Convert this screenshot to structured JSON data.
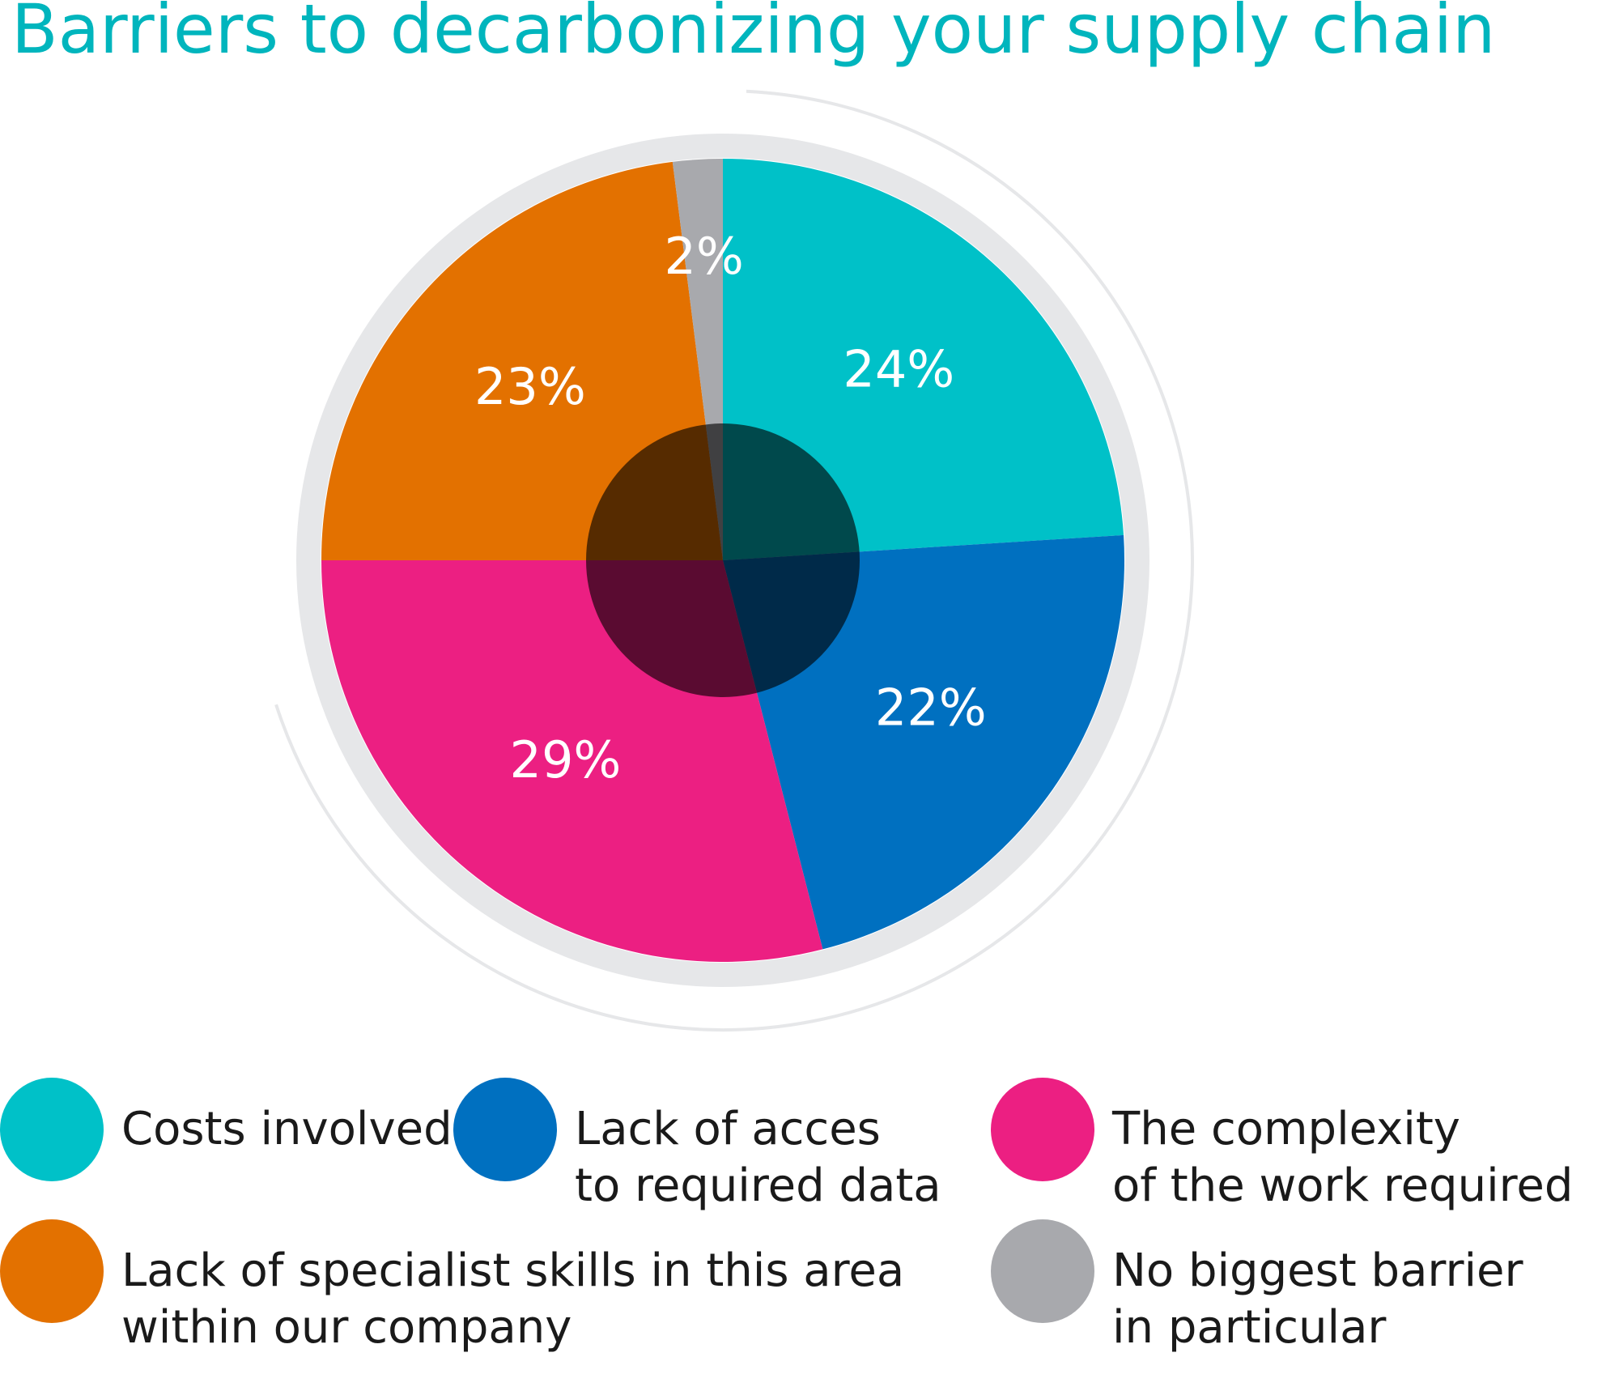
{
  "chart_data": {
    "type": "pie",
    "title": "Barriers to decarbonizing your supply chain",
    "categories": [
      "Costs involved",
      "Lack of acces\nto required data",
      "The complexity\nof the work required",
      "Lack of specialist skills in this area\nwithin our company",
      "No biggest barrier\nin particular"
    ],
    "values": [
      24,
      22,
      29,
      23,
      2
    ],
    "value_labels": [
      "24%",
      "22%",
      "29%",
      "23%",
      "2%"
    ],
    "colors": [
      "#00c1c8",
      "#0070c0",
      "#ec1f82",
      "#e37100",
      "#a8a9ad"
    ]
  }
}
